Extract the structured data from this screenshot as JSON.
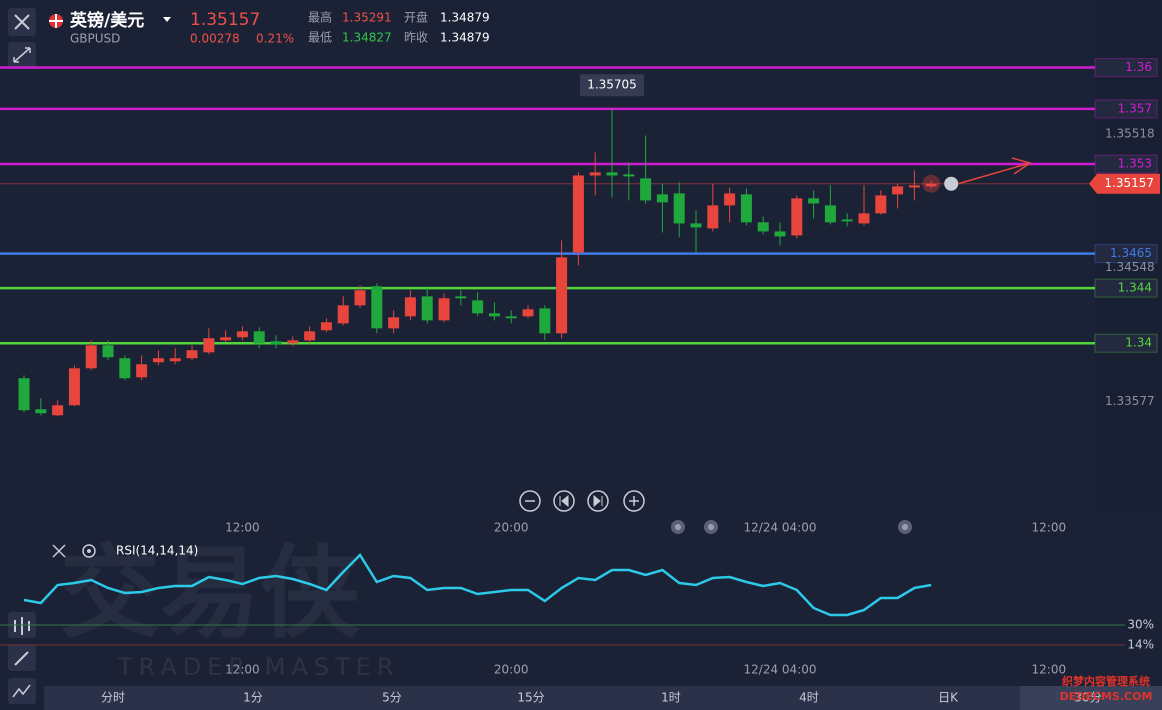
{
  "header": {
    "name": "英镑/美元",
    "code": "GBPUSD",
    "price": 1.35157,
    "change": 0.00278,
    "change_pct": "0.21%",
    "high_label": "最高",
    "high": 1.35291,
    "open_label": "开盘",
    "open": 1.34879,
    "low_label": "最低",
    "low": 1.34827,
    "prev_close_label": "昨收",
    "prev_close": 1.34879
  },
  "chart_data": [
    {
      "type": "candlestick",
      "up_color": "#e8453c",
      "down_color": "#1fa83b",
      "open": [
        1.33746,
        1.33521,
        1.33477,
        1.3355,
        1.33818,
        1.33985,
        1.33891,
        1.33753,
        1.33862,
        1.33869,
        1.33891,
        1.33934,
        1.34021,
        1.34043,
        1.34086,
        1.34014,
        1.33999,
        1.34021,
        1.34094,
        1.34144,
        1.34275,
        1.34413,
        1.34108,
        1.34195,
        1.3434,
        1.34166,
        1.3434,
        1.34311,
        1.34217,
        1.34195,
        1.34195,
        1.34253,
        1.34072,
        1.34659,
        1.35217,
        1.35239,
        1.35225,
        1.35196,
        1.3508,
        1.35087,
        1.34869,
        1.34833,
        1.35,
        1.3508,
        1.34877,
        1.34811,
        1.34782,
        1.35051,
        1.35,
        1.34898,
        1.34869,
        1.34942,
        1.3508,
        1.3513,
        1.35138
      ],
      "high": [
        1.33767,
        1.33601,
        1.33586,
        1.3384,
        1.34021,
        1.34021,
        1.33912,
        1.33912,
        1.33949,
        1.33963,
        1.33985,
        1.34108,
        1.34094,
        1.34123,
        1.34115,
        1.34057,
        1.3405,
        1.34123,
        1.34181,
        1.3434,
        1.3442,
        1.34434,
        1.34239,
        1.34384,
        1.34413,
        1.34362,
        1.34384,
        1.34369,
        1.34297,
        1.34239,
        1.34275,
        1.34275,
        1.34746,
        1.35239,
        1.35384,
        1.35705,
        1.35312,
        1.35507,
        1.35159,
        1.35167,
        1.34964,
        1.35159,
        1.3513,
        1.35123,
        1.3492,
        1.34877,
        1.35072,
        1.35109,
        1.35145,
        1.34942,
        1.35145,
        1.35109,
        1.35159,
        1.35254,
        1.35181
      ],
      "low": [
        1.33499,
        1.33477,
        1.3347,
        1.33543,
        1.33804,
        1.33876,
        1.33731,
        1.33731,
        1.3384,
        1.33847,
        1.33876,
        1.3392,
        1.34007,
        1.34021,
        1.33963,
        1.33963,
        1.33978,
        1.33999,
        1.34079,
        1.3413,
        1.34253,
        1.34072,
        1.34072,
        1.34166,
        1.34144,
        1.34152,
        1.34275,
        1.34195,
        1.34166,
        1.34144,
        1.34181,
        1.34021,
        1.34036,
        1.34565,
        1.35072,
        1.35058,
        1.35036,
        1.35014,
        1.34804,
        1.34768,
        1.34659,
        1.34811,
        1.34877,
        1.34855,
        1.3479,
        1.3471,
        1.34761,
        1.34906,
        1.34862,
        1.34848,
        1.34855,
        1.34935,
        1.34978,
        1.35036,
        1.35123
      ],
      "close": [
        1.33514,
        1.33492,
        1.3355,
        1.33818,
        1.33985,
        1.33898,
        1.33746,
        1.33847,
        1.33891,
        1.33891,
        1.33949,
        1.34036,
        1.34043,
        1.34086,
        1.33999,
        1.33992,
        1.34021,
        1.34086,
        1.34152,
        1.34275,
        1.34384,
        1.34108,
        1.34188,
        1.34333,
        1.34166,
        1.34326,
        1.34326,
        1.34217,
        1.34195,
        1.34181,
        1.34246,
        1.34072,
        1.34623,
        1.35217,
        1.35239,
        1.35217,
        1.3521,
        1.35036,
        1.35022,
        1.34869,
        1.3484,
        1.35,
        1.35087,
        1.34877,
        1.34811,
        1.34775,
        1.35051,
        1.35014,
        1.34877,
        1.34884,
        1.34942,
        1.35072,
        1.35138,
        1.35145,
        1.35157
      ],
      "xlim": [
        -1.43,
        63.75
      ],
      "ylim": [
        1.3279,
        1.3649
      ],
      "xticks": [
        {
          "value": 13,
          "label": "12:00"
        },
        {
          "value": 29,
          "label": "20:00"
        },
        {
          "value": 45,
          "label": "12/24 04:00"
        },
        {
          "value": 61,
          "label": "12:00"
        }
      ],
      "yticks": [
        1.35518,
        1.34548,
        1.33577
      ],
      "levels": [
        {
          "value": 1.36,
          "color": "#d41bd4"
        },
        {
          "value": 1.357,
          "color": "#d41bd4"
        },
        {
          "value": 1.353,
          "color": "#d41bd4"
        },
        {
          "value": 1.3465,
          "color": "#3f7bea"
        },
        {
          "value": 1.344,
          "color": "#52d63c"
        },
        {
          "value": 1.34,
          "color": "#52d63c"
        }
      ],
      "last_price": 1.35157,
      "last_color": "#e8453c",
      "high_annotation": 1.35705
    },
    {
      "type": "line",
      "title": "RSI(14,14,14)",
      "color": "#2cc9e8",
      "values": [
        50.0,
        47.6,
        62.0,
        63.6,
        66.0,
        59.6,
        55.6,
        56.4,
        59.6,
        61.2,
        61.2,
        68.4,
        66.0,
        62.8,
        67.6,
        69.2,
        66.8,
        62.8,
        58.0,
        72.4,
        86.0,
        64.4,
        69.2,
        67.6,
        58.0,
        59.6,
        59.6,
        54.8,
        56.4,
        58.0,
        58.0,
        49.2,
        59.6,
        67.6,
        66.0,
        74.0,
        74.0,
        70.0,
        74.0,
        63.6,
        62.0,
        67.6,
        68.4,
        64.4,
        61.2,
        63.6,
        58.0,
        43.6,
        38.0,
        38.0,
        42.0,
        51.6,
        51.6,
        59.6,
        62.0
      ],
      "xlim": [
        -1.43,
        63.75
      ],
      "ylim": [
        6,
        98
      ],
      "xticks": [
        {
          "value": 13,
          "label": "12:00"
        },
        {
          "value": 29,
          "label": "20:00"
        },
        {
          "value": 45,
          "label": "12/24 04:00"
        },
        {
          "value": 61,
          "label": "12:00"
        }
      ],
      "yticks": [
        {
          "value": 30,
          "label": "30%"
        },
        {
          "value": 14,
          "label": "14%"
        }
      ],
      "reference_colors": [
        "#2f7a3a",
        "#7a2f36"
      ]
    }
  ],
  "nav": [
    "分时",
    "1分",
    "5分",
    "15分",
    "1时",
    "4时",
    "日K",
    "30分"
  ],
  "watermark": {
    "name": "交易侠",
    "english": "TRADER MASTER"
  },
  "site_mark": [
    "织梦内容管理系统",
    "DEDECMS.COM"
  ]
}
